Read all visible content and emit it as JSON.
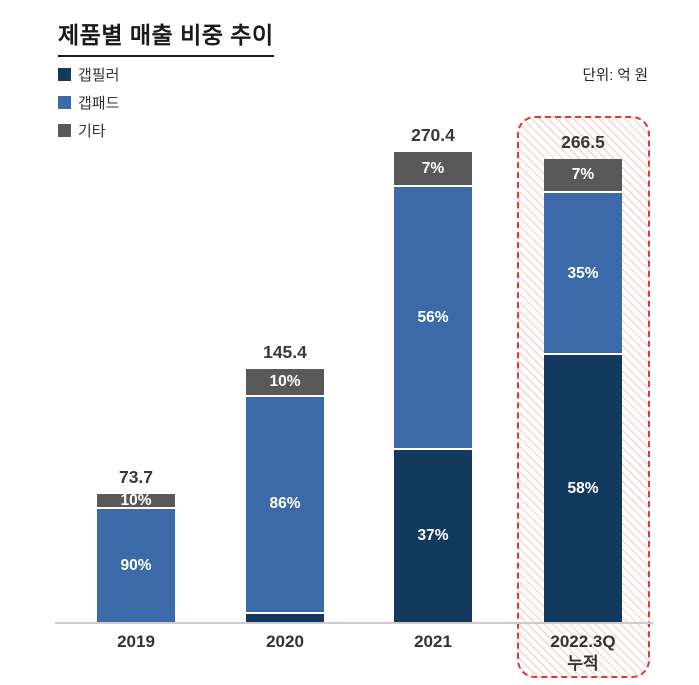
{
  "title": "제품별 매출 비중 추이",
  "unit_label": "단위: 억 원",
  "legend": [
    {
      "label": "갭필러",
      "color": "#14395e"
    },
    {
      "label": "갭패드",
      "color": "#3c6aa9"
    },
    {
      "label": "기타",
      "color": "#595959"
    }
  ],
  "chart_data": {
    "type": "bar",
    "stacked": true,
    "title": "제품별 매출 비중 추이",
    "unit": "억 원",
    "categories": [
      {
        "label": "2019"
      },
      {
        "label": "2020"
      },
      {
        "label": "2021"
      },
      {
        "label": "2022.3Q",
        "sublabel": "누적"
      }
    ],
    "totals": [
      73.7,
      145.4,
      270.4,
      266.5
    ],
    "series": [
      {
        "name": "갭필러",
        "color": "#14395e",
        "percent": [
          0,
          4,
          37,
          58
        ]
      },
      {
        "name": "갭패드",
        "color": "#3c6aa9",
        "percent": [
          90,
          86,
          56,
          35
        ]
      },
      {
        "name": "기타",
        "color": "#595959",
        "percent": [
          10,
          10,
          7,
          7
        ]
      }
    ],
    "percent_label_suffix": "%",
    "ylim": [
      0,
      280
    ],
    "grid": false,
    "legend_position": "top-left",
    "highlight": {
      "category_index": 3,
      "style": "red-dashed-hatched-box"
    }
  }
}
